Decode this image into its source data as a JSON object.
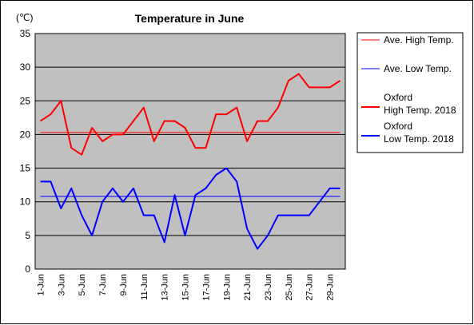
{
  "chart_data": {
    "type": "line",
    "title": "Temperature in June",
    "unit_label": "(℃)",
    "ylim": [
      0,
      35
    ],
    "y_ticks": [
      "0",
      "5",
      "10",
      "15",
      "20",
      "25",
      "30",
      "35"
    ],
    "x_tick_labels": [
      "1-Jun",
      "3-Jun",
      "5-Jun",
      "7-Jun",
      "9-Jun",
      "11-Jun",
      "13-Jun",
      "15-Jun",
      "17-Jun",
      "19-Jun",
      "21-Jun",
      "23-Jun",
      "25-Jun",
      "27-Jun",
      "29-Jun"
    ],
    "categories": [
      "1-Jun",
      "2-Jun",
      "3-Jun",
      "4-Jun",
      "5-Jun",
      "6-Jun",
      "7-Jun",
      "8-Jun",
      "9-Jun",
      "10-Jun",
      "11-Jun",
      "12-Jun",
      "13-Jun",
      "14-Jun",
      "15-Jun",
      "16-Jun",
      "17-Jun",
      "18-Jun",
      "19-Jun",
      "20-Jun",
      "21-Jun",
      "22-Jun",
      "23-Jun",
      "24-Jun",
      "25-Jun",
      "26-Jun",
      "27-Jun",
      "28-Jun",
      "29-Jun",
      "30-Jun"
    ],
    "grid": true,
    "legend_position": "right",
    "background_color": "#c0c0c0",
    "series": [
      {
        "name": "Ave. High Temp.",
        "legend_lines": [
          "Ave. High Temp."
        ],
        "color": "#ff0000",
        "thin": true,
        "values": [
          20.3,
          20.3,
          20.3,
          20.3,
          20.3,
          20.3,
          20.3,
          20.3,
          20.3,
          20.3,
          20.3,
          20.3,
          20.3,
          20.3,
          20.3,
          20.3,
          20.3,
          20.3,
          20.3,
          20.3,
          20.3,
          20.3,
          20.3,
          20.3,
          20.3,
          20.3,
          20.3,
          20.3,
          20.3,
          20.3
        ]
      },
      {
        "name": "Ave. Low Temp.",
        "legend_lines": [
          "Ave. Low Temp."
        ],
        "color": "#0000ff",
        "thin": true,
        "values": [
          10.8,
          10.8,
          10.8,
          10.8,
          10.8,
          10.8,
          10.8,
          10.8,
          10.8,
          10.8,
          10.8,
          10.8,
          10.8,
          10.8,
          10.8,
          10.8,
          10.8,
          10.8,
          10.8,
          10.8,
          10.8,
          10.8,
          10.8,
          10.8,
          10.8,
          10.8,
          10.8,
          10.8,
          10.8,
          10.8
        ]
      },
      {
        "name": "Oxford High Temp. 2018",
        "legend_lines": [
          "Oxford",
          "High Temp. 2018"
        ],
        "color": "#ff0000",
        "thin": false,
        "values": [
          22,
          23,
          25,
          18,
          17,
          21,
          19,
          20,
          20,
          22,
          24,
          19,
          22,
          22,
          21,
          18,
          18,
          23,
          23,
          24,
          19,
          22,
          22,
          24,
          28,
          29,
          27,
          27,
          27,
          28
        ]
      },
      {
        "name": "Oxford Low Temp. 2018",
        "legend_lines": [
          "Oxford",
          "Low Temp. 2018"
        ],
        "color": "#0000ff",
        "thin": false,
        "values": [
          13,
          13,
          9,
          12,
          8,
          5,
          10,
          12,
          10,
          12,
          8,
          8,
          4,
          11,
          5,
          11,
          12,
          14,
          15,
          13,
          6,
          3,
          5,
          8,
          8,
          8,
          8,
          10,
          12,
          12
        ]
      }
    ]
  }
}
